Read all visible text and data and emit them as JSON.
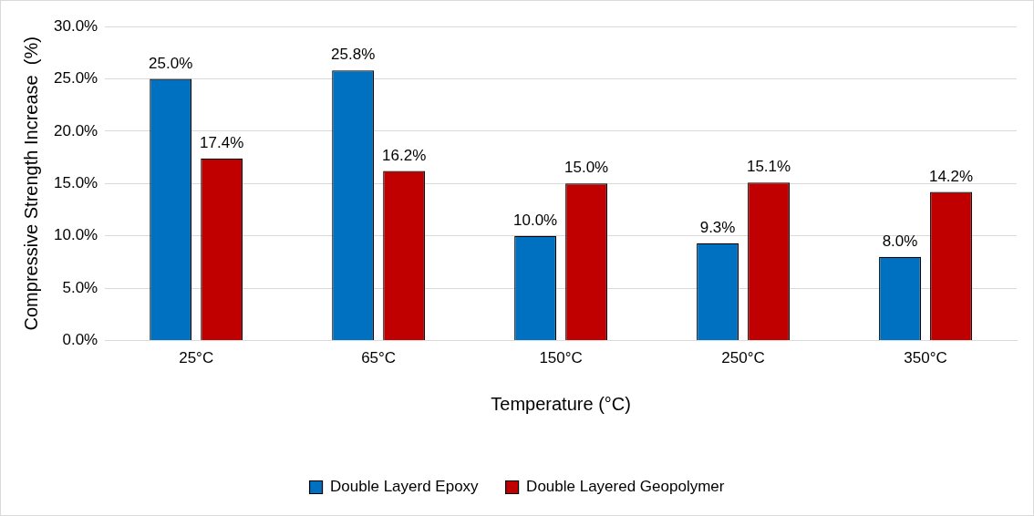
{
  "chart_data": {
    "type": "bar",
    "xlabel": "Temperature (°C)",
    "ylabel": "Compressive Strength Increase  (%)",
    "categories": [
      "25°C",
      "65°C",
      "150°C",
      "250°C",
      "350°C"
    ],
    "series": [
      {
        "name": "Double Layerd Epoxy",
        "color": "#0070c0",
        "values": [
          25.0,
          25.8,
          10.0,
          9.3,
          8.0
        ],
        "value_labels": [
          "25.0%",
          "25.8%",
          "10.0%",
          "9.3%",
          "8.0%"
        ]
      },
      {
        "name": "Double Layered Geopolymer",
        "color": "#c00000",
        "values": [
          17.4,
          16.2,
          15.0,
          15.1,
          14.2
        ],
        "value_labels": [
          "17.4%",
          "16.2%",
          "15.0%",
          "15.1%",
          "14.2%"
        ]
      }
    ],
    "ylim": [
      0,
      30
    ],
    "yticks": [
      {
        "value": 0,
        "label": "0.0%"
      },
      {
        "value": 5,
        "label": "5.0%"
      },
      {
        "value": 10,
        "label": "10.0%"
      },
      {
        "value": 15,
        "label": "15.0%"
      },
      {
        "value": 20,
        "label": "20.0%"
      },
      {
        "value": 25,
        "label": "25.0%"
      },
      {
        "value": 30,
        "label": "30.0%"
      }
    ],
    "grid": "y",
    "legend": "bottom"
  }
}
